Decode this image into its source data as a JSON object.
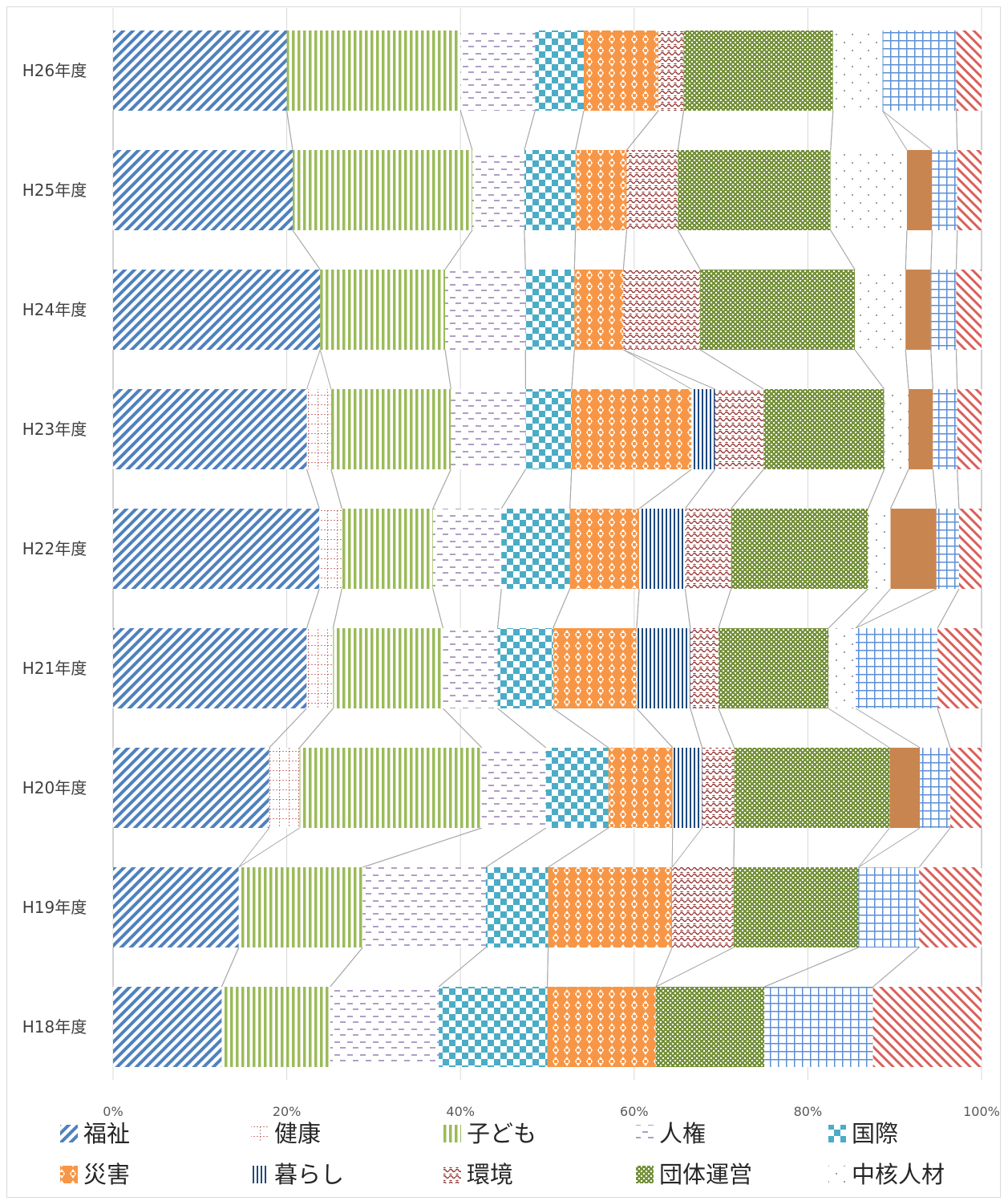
{
  "chart_data": {
    "type": "bar",
    "orientation": "horizontal",
    "stacked": "100%",
    "categories": [
      "H26年度",
      "H25年度",
      "H24年度",
      "H23年度",
      "H22年度",
      "H21年度",
      "H20年度",
      "H19年度",
      "H18年度"
    ],
    "xlim": [
      0,
      100
    ],
    "x_ticks": [
      "0%",
      "20%",
      "40%",
      "60%",
      "80%",
      "100%"
    ],
    "grid": true,
    "legend_position": "bottom",
    "series": [
      {
        "name": "福祉",
        "color": "#4f81bd",
        "pattern": "diagonal-stripe",
        "values": [
          20.0,
          20.7,
          23.7,
          22.3,
          23.8,
          22.0,
          18.0,
          14.5,
          12.5
        ]
      },
      {
        "name": "健康",
        "color": "#c0504d",
        "pattern": "dotted-grid",
        "values": [
          0,
          0,
          0,
          2.8,
          2.6,
          3.0,
          3.5,
          0,
          0
        ]
      },
      {
        "name": "子ども",
        "color": "#9bbb59",
        "pattern": "vertical-stripe",
        "values": [
          20.0,
          20.7,
          14.3,
          13.8,
          10.5,
          12.5,
          21.0,
          14.3,
          12.5
        ]
      },
      {
        "name": "人権",
        "color": "#8064a2",
        "pattern": "dashed-lines",
        "values": [
          8.6,
          6.0,
          9.2,
          8.6,
          7.9,
          6.2,
          7.4,
          14.2,
          12.5
        ]
      },
      {
        "name": "国際",
        "color": "#4bacc6",
        "pattern": "checkerboard",
        "values": [
          5.6,
          5.9,
          5.6,
          5.3,
          7.9,
          6.3,
          7.2,
          7.2,
          12.5
        ]
      },
      {
        "name": "災害",
        "color": "#f79646",
        "pattern": "diamond",
        "values": [
          8.6,
          5.9,
          5.6,
          13.8,
          8.0,
          9.5,
          7.4,
          14.3,
          12.5
        ]
      },
      {
        "name": "暮らし",
        "color": "#1f497d",
        "pattern": "vertical-line",
        "values": [
          0,
          0,
          0,
          2.7,
          5.3,
          6.1,
          3.4,
          0,
          0
        ]
      },
      {
        "name": "環境",
        "color": "#943634",
        "pattern": "wave",
        "values": [
          2.9,
          5.9,
          8.8,
          5.6,
          5.3,
          3.2,
          3.7,
          7.1,
          0
        ]
      },
      {
        "name": "団体運営",
        "color": "#76923c",
        "pattern": "cross-dot",
        "values": [
          17.2,
          17.6,
          17.7,
          13.9,
          15.8,
          12.5,
          17.9,
          14.4,
          12.5
        ]
      },
      {
        "name": "中核人材",
        "color": "#7f7f7f",
        "pattern": "sparse-dots",
        "values": [
          5.7,
          8.8,
          5.8,
          2.8,
          2.6,
          3.1,
          0,
          0,
          0
        ]
      },
      {
        "name": "(無地)",
        "legend": false,
        "color": "#c9854f",
        "pattern": "solid",
        "values": [
          0,
          2.9,
          2.9,
          2.8,
          5.3,
          0,
          3.5,
          0,
          0
        ]
      },
      {
        "name": "(格子)",
        "legend": false,
        "color": "#5b8fd6",
        "pattern": "grid",
        "values": [
          8.5,
          2.9,
          2.9,
          2.8,
          2.6,
          9.3,
          3.5,
          7.0,
          12.5
        ]
      },
      {
        "name": "(斜線)",
        "legend": false,
        "color": "#d9605a",
        "pattern": "diagonal-stripe-right",
        "values": [
          2.9,
          2.8,
          2.9,
          2.8,
          2.6,
          5.0,
          3.6,
          7.2,
          12.5
        ]
      }
    ]
  }
}
